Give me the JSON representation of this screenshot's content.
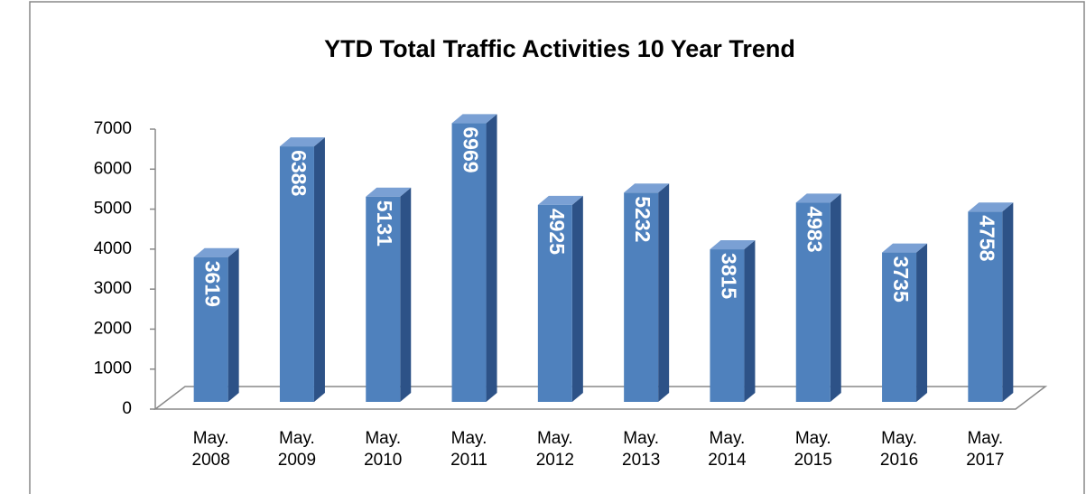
{
  "chart_data": {
    "type": "bar3d",
    "title": "YTD Total Traffic Activities 10 Year Trend",
    "categories": [
      "May. 2008",
      "May. 2009",
      "May. 2010",
      "May. 2011",
      "May. 2012",
      "May. 2013",
      "May. 2014",
      "May. 2015",
      "May. 2016",
      "May. 2017"
    ],
    "values": [
      3619,
      6388,
      5131,
      6969,
      4925,
      5232,
      3815,
      4983,
      3735,
      4758
    ],
    "color": "#4f81bd",
    "ylim": [
      0,
      7000
    ],
    "yticks": [
      0,
      1000,
      2000,
      3000,
      4000,
      5000,
      6000,
      7000
    ],
    "grid": false
  }
}
